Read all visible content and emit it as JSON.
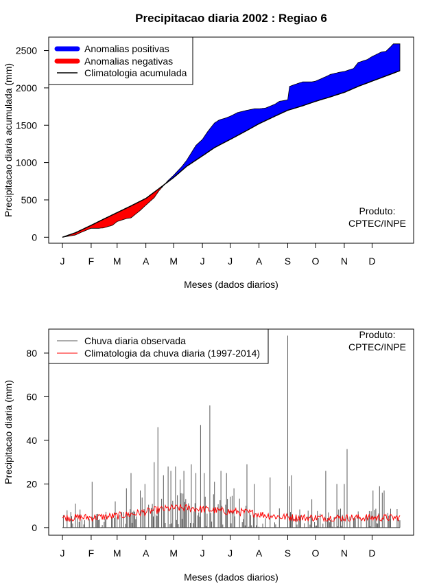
{
  "colors": {
    "positive": "#0000ff",
    "negative": "#ff0000",
    "climatology": "#000000",
    "observed_bar": "#595959",
    "climatology_daily": "#ff0000"
  },
  "chart_data": [
    {
      "type": "area",
      "title": "Precipitacao diaria 2002 : Regiao 6",
      "xlabel": "Meses (dados diarios)",
      "ylabel": "Precipitacao diaria acumulada (mm)",
      "x_ticks": [
        "J",
        "F",
        "M",
        "A",
        "M",
        "J",
        "J",
        "A",
        "S",
        "O",
        "N",
        "D"
      ],
      "x_tick_days": [
        1,
        32,
        60,
        91,
        121,
        152,
        182,
        213,
        244,
        274,
        305,
        335
      ],
      "ylim": [
        -80,
        2680
      ],
      "y_ticks": [
        0,
        500,
        1000,
        1500,
        2000,
        2500
      ],
      "legend": [
        "Anomalias positivas",
        "Anomalias negativas",
        "Climatologia acumulada"
      ],
      "credit": [
        "Produto:",
        "CPTEC/INPE"
      ],
      "climatology_cumulative": {
        "day": [
          1,
          15,
          32,
          45,
          60,
          75,
          91,
          105,
          121,
          135,
          152,
          165,
          182,
          200,
          213,
          230,
          244,
          260,
          274,
          290,
          305,
          320,
          335,
          350,
          365
        ],
        "value": [
          0,
          60,
          160,
          240,
          330,
          420,
          520,
          650,
          800,
          950,
          1090,
          1200,
          1310,
          1430,
          1520,
          1620,
          1700,
          1760,
          1820,
          1880,
          1940,
          2020,
          2090,
          2160,
          2230
        ]
      },
      "observed_cumulative": {
        "day": [
          1,
          15,
          22,
          32,
          40,
          45,
          55,
          60,
          70,
          75,
          85,
          91,
          100,
          105,
          115,
          121,
          130,
          135,
          145,
          152,
          158,
          165,
          170,
          178,
          182,
          190,
          200,
          208,
          213,
          220,
          230,
          235,
          244,
          246,
          255,
          260,
          270,
          274,
          285,
          290,
          300,
          305,
          315,
          320,
          330,
          335,
          345,
          350,
          355,
          358,
          365
        ],
        "value": [
          0,
          30,
          70,
          120,
          120,
          125,
          160,
          210,
          250,
          260,
          360,
          430,
          530,
          620,
          760,
          830,
          950,
          1030,
          1230,
          1310,
          1420,
          1530,
          1570,
          1600,
          1620,
          1670,
          1700,
          1720,
          1720,
          1730,
          1780,
          1820,
          1840,
          2020,
          2060,
          2080,
          2080,
          2090,
          2150,
          2180,
          2210,
          2220,
          2260,
          2340,
          2380,
          2420,
          2480,
          2490,
          2550,
          2590,
          2590
        ]
      }
    },
    {
      "type": "bar",
      "xlabel": "Meses (dados diarios)",
      "ylabel": "Precipitacao diaria (mm)",
      "x_ticks": [
        "J",
        "F",
        "M",
        "A",
        "M",
        "J",
        "J",
        "A",
        "S",
        "O",
        "N",
        "D"
      ],
      "x_tick_days": [
        1,
        32,
        60,
        91,
        121,
        152,
        182,
        213,
        244,
        274,
        305,
        335
      ],
      "ylim": [
        -3.5,
        91
      ],
      "y_ticks": [
        0,
        20,
        40,
        60,
        80
      ],
      "legend": [
        "Chuva diaria observada",
        "Climatologia da chuva diaria (1997-2014)"
      ],
      "credit": [
        "Produto:",
        "CPTEC/INPE"
      ],
      "observed_peaks": {
        "day": [
          15,
          33,
          58,
          70,
          75,
          85,
          90,
          100,
          104,
          110,
          115,
          118,
          123,
          128,
          132,
          140,
          145,
          150,
          154,
          160,
          165,
          172,
          178,
          186,
          200,
          208,
          225,
          244,
          246,
          248,
          270,
          285,
          297,
          305,
          308,
          336,
          343,
          346,
          348
        ],
        "value": [
          11,
          21,
          12,
          18,
          25,
          17,
          20,
          30,
          46,
          24,
          28,
          26,
          28,
          22,
          26,
          29,
          25,
          47,
          25,
          56,
          21,
          26,
          25,
          18,
          29,
          20,
          23,
          88,
          19,
          24,
          13,
          26,
          20,
          20,
          36,
          17,
          19,
          16,
          17
        ]
      },
      "climatology_daily_range": [
        3,
        12
      ]
    }
  ]
}
